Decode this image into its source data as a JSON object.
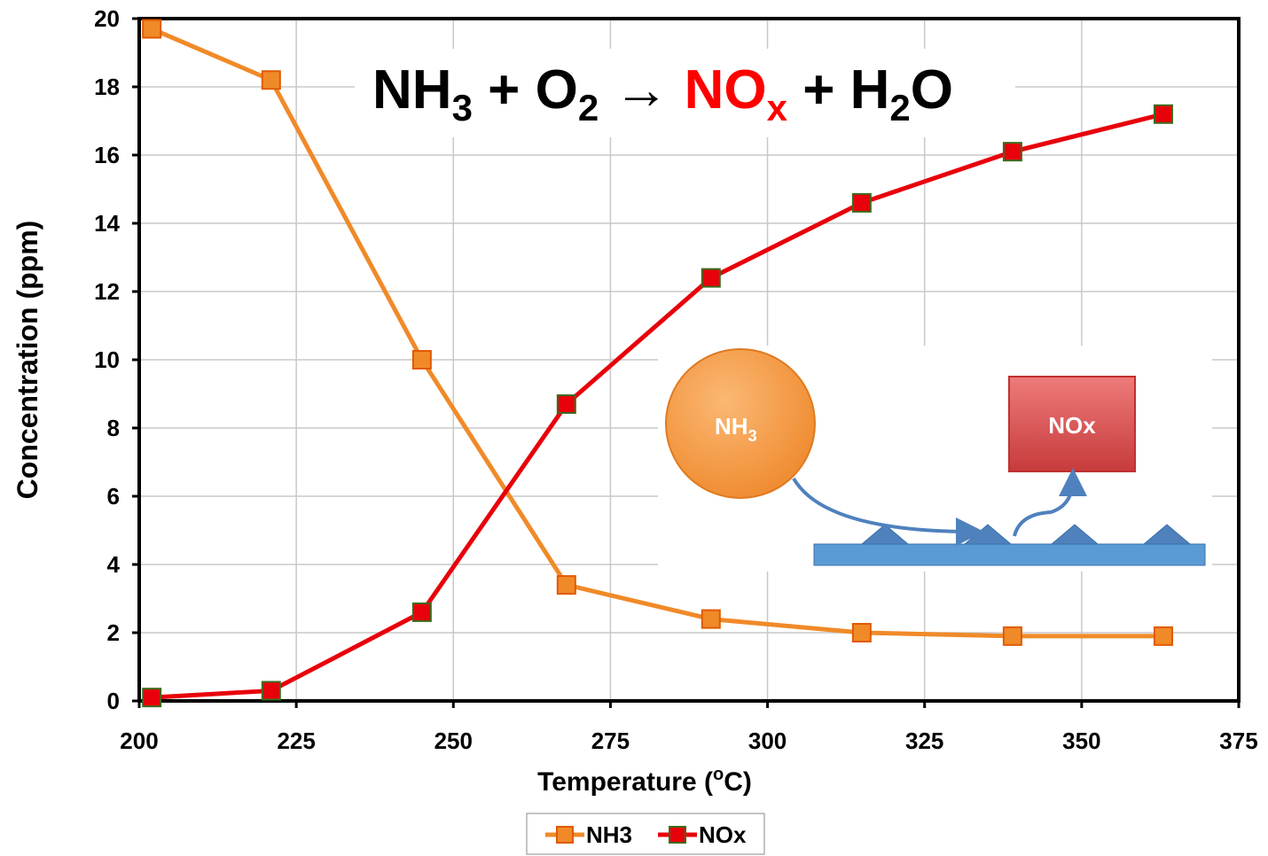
{
  "chart_data": {
    "type": "line",
    "equation": [
      "NH",
      "3",
      " + O",
      "2",
      " → ",
      "NO",
      "x",
      " + H",
      "2",
      "O"
    ],
    "y_label": "Concentration (ppm)",
    "x_label": [
      "Temperature (",
      "o",
      "C)"
    ],
    "xlim": [
      200,
      375
    ],
    "xticks": [
      200,
      225,
      250,
      275,
      300,
      325,
      350,
      375
    ],
    "ylim": [
      0,
      20
    ],
    "yticks": [
      0,
      2,
      4,
      6,
      8,
      10,
      12,
      14,
      16,
      18,
      20
    ],
    "grid": true,
    "legend": "bottom",
    "x": [
      202,
      221,
      245,
      268,
      291,
      315,
      339,
      363
    ],
    "series": [
      {
        "name": "NH3",
        "color": "#f08a28",
        "values": [
          19.7,
          18.2,
          10.0,
          3.4,
          2.4,
          2.0,
          1.9,
          1.9
        ]
      },
      {
        "name": "NOx",
        "color": "#e8000b",
        "values": [
          0.1,
          0.3,
          2.6,
          8.7,
          12.4,
          14.6,
          16.1,
          17.2
        ]
      }
    ],
    "inset": {
      "molecule": [
        "NH",
        "3"
      ],
      "product": "NOx"
    }
  }
}
